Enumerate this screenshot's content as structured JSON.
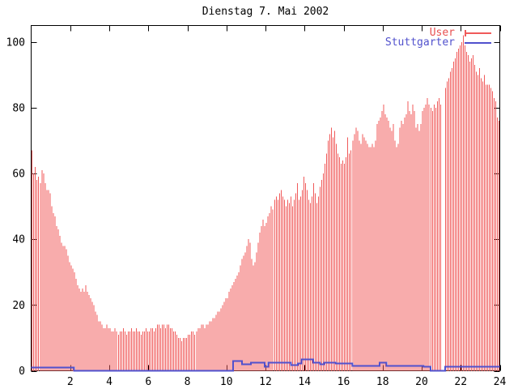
{
  "title": "Dienstag 7. Mai 2002",
  "legend": {
    "entries": [
      {
        "label": "User",
        "color": "#f05a5a",
        "series_type": "bars"
      },
      {
        "label": "Stuttgarter",
        "color": "#5151cd",
        "series_type": "line"
      }
    ]
  },
  "colors": {
    "background": "#ffffff",
    "axis": "#000000",
    "user_bars": "#f05a5a",
    "stuttgarter_line": "#5151cd",
    "text": "#000000"
  },
  "chart_data": {
    "type": "bar",
    "title": "Dienstag 7. Mai 2002",
    "xlabel": "",
    "ylabel": "",
    "xlim": [
      0,
      24
    ],
    "ylim": [
      0,
      105
    ],
    "xticks": [
      "2",
      "4",
      "6",
      "8",
      "10",
      "12",
      "14",
      "16",
      "18",
      "20",
      "22",
      "24"
    ],
    "xtick_hours": [
      2,
      4,
      6,
      8,
      10,
      12,
      14,
      16,
      18,
      20,
      22,
      24
    ],
    "yticks": [
      "0",
      "20",
      "40",
      "60",
      "80",
      "100"
    ],
    "ytick_values": [
      0,
      20,
      40,
      60,
      80,
      100
    ],
    "grid": false,
    "legend_position": "top-right",
    "sample_interval_minutes": 5,
    "series": [
      {
        "name": "User",
        "type": "bar",
        "color": "#f05a5a",
        "values": [
          67,
          60,
          62,
          58,
          59,
          57,
          61,
          60,
          57,
          55,
          55,
          54,
          50,
          48,
          47,
          44,
          43,
          41,
          39,
          38,
          38,
          37,
          35,
          33,
          32,
          31,
          30,
          28,
          26,
          25,
          24,
          25,
          24,
          26,
          24,
          23,
          22,
          21,
          20,
          18,
          17,
          15,
          15,
          14,
          13,
          13,
          14,
          13,
          13,
          12,
          12,
          13,
          12,
          11,
          12,
          12,
          13,
          12,
          11,
          12,
          12,
          13,
          12,
          12,
          13,
          12,
          12,
          11,
          12,
          12,
          13,
          12,
          12,
          13,
          13,
          12,
          13,
          14,
          14,
          13,
          14,
          14,
          13,
          14,
          14,
          13,
          13,
          12,
          12,
          11,
          10,
          10,
          9,
          10,
          10,
          10,
          11,
          11,
          12,
          12,
          11,
          12,
          13,
          13,
          14,
          14,
          13,
          14,
          14,
          15,
          15,
          16,
          16,
          17,
          18,
          18,
          19,
          20,
          21,
          22,
          22,
          24,
          25,
          26,
          27,
          28,
          29,
          30,
          32,
          34,
          35,
          36,
          38,
          40,
          39,
          34,
          32,
          33,
          36,
          39,
          42,
          44,
          46,
          44,
          45,
          47,
          48,
          50,
          49,
          52,
          53,
          52,
          54,
          55,
          53,
          52,
          50,
          52,
          51,
          53,
          50,
          52,
          54,
          57,
          52,
          53,
          55,
          59,
          57,
          55,
          52,
          51,
          53,
          57,
          54,
          51,
          53,
          56,
          58,
          60,
          63,
          66,
          70,
          72,
          74,
          71,
          73,
          69,
          66,
          65,
          63,
          64,
          63,
          65,
          71,
          66,
          67,
          70,
          72,
          74,
          73,
          70,
          69,
          72,
          71,
          70,
          69,
          68,
          68,
          69,
          68,
          70,
          75,
          76,
          77,
          79,
          81,
          78,
          77,
          76,
          74,
          73,
          75,
          70,
          68,
          69,
          74,
          76,
          75,
          77,
          78,
          82,
          79,
          78,
          81,
          79,
          74,
          75,
          73,
          75,
          79,
          80,
          81,
          83,
          81,
          80,
          79,
          81,
          80,
          82,
          83,
          81,
          0,
          0,
          86,
          88,
          89,
          91,
          92,
          94,
          95,
          97,
          98,
          99,
          100,
          102,
          99,
          97,
          96,
          94,
          95,
          96,
          93,
          91,
          90,
          92,
          89,
          88,
          90,
          87,
          87,
          87,
          86,
          85,
          83,
          82,
          77,
          76
        ]
      },
      {
        "name": "Stuttgarter",
        "type": "step-line",
        "color": "#5151cd",
        "step_points": [
          [
            0,
            1.2
          ],
          [
            2.2,
            0.15
          ],
          [
            10.35,
            3.0
          ],
          [
            10.8,
            2.2
          ],
          [
            11.25,
            2.5
          ],
          [
            11.95,
            1.4
          ],
          [
            12.15,
            2.7
          ],
          [
            13.3,
            1.9
          ],
          [
            13.65,
            2.3
          ],
          [
            13.85,
            3.5
          ],
          [
            14.45,
            2.7
          ],
          [
            14.8,
            2.0
          ],
          [
            15.0,
            2.7
          ],
          [
            15.6,
            2.3
          ],
          [
            16.45,
            1.5
          ],
          [
            17.85,
            2.6
          ],
          [
            18.2,
            1.5
          ],
          [
            20.1,
            1.3
          ],
          [
            20.45,
            0.2
          ],
          [
            21.2,
            1.4
          ],
          [
            24,
            1.4
          ]
        ]
      }
    ]
  }
}
